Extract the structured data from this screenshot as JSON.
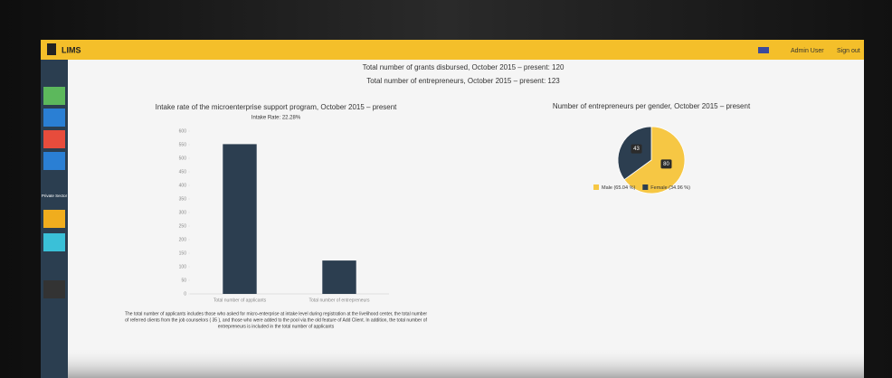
{
  "header": {
    "brand": "LIMS",
    "user": "Admin User",
    "signout": "Sign out"
  },
  "sidebar": {
    "label": "Private Sector"
  },
  "summary": [
    "Total number of grants disbursed, October 2015 – present: 120",
    "Total number of entrepreneurs, October 2015 – present: 123"
  ],
  "charts": [
    {
      "type": "bar",
      "title": "Intake rate of the microenterprise support program, October 2015 – present",
      "subtitle": "Intake Rate: 22.28%",
      "categories": [
        "Total number of applicants",
        "Total number of entrepreneurs"
      ],
      "values": [
        552,
        123
      ],
      "color": "#2c3e50",
      "ylim": [
        0,
        600
      ],
      "yticks": [
        0,
        50,
        100,
        150,
        200,
        250,
        300,
        350,
        400,
        450,
        500,
        550,
        600
      ],
      "grid": false
    },
    {
      "type": "pie",
      "title": "Number of entrepreneurs per gender, October 2015 – present",
      "categories": [
        "Male (65.04 %)",
        "Female (34.96 %)"
      ],
      "values": [
        80,
        43
      ],
      "colors": [
        "#f6c744",
        "#2c3e50"
      ]
    }
  ],
  "note": [
    "The total number of applicants includes those who asked for micro-enterprise at intake level during registration at the livelihood center, the total number",
    "of referred clients from the job counselors ( 35 ), and those who were added to the pool via the old feature of Add Client. In addition, the total number of",
    "entrepreneurs is included in the total number of applicants"
  ]
}
